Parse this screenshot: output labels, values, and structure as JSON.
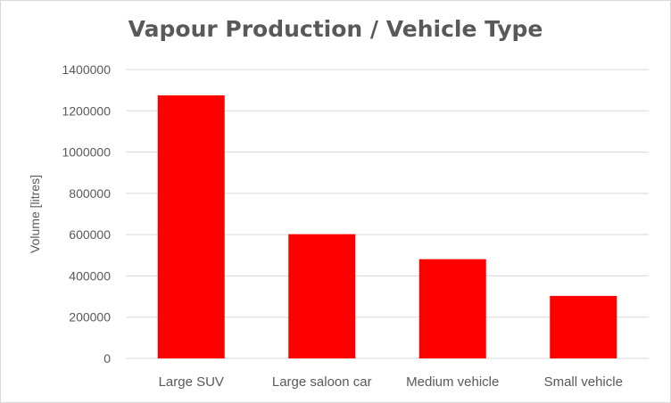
{
  "chart_data": {
    "type": "bar",
    "title": "Vapour Production / Vehicle Type",
    "xlabel": "",
    "ylabel": "Volume [litres]",
    "categories": [
      "Large SUV",
      "Large saloon car",
      "Medium vehicle",
      "Small vehicle"
    ],
    "values": [
      1275000,
      602000,
      481000,
      303000
    ],
    "ylim": [
      0,
      1400000
    ],
    "yticks": [
      "0",
      "200000",
      "400000",
      "600000",
      "800000",
      "1000000",
      "1200000",
      "1400000"
    ],
    "bar_color": "#ff0000",
    "grid": true,
    "legend": "none"
  }
}
